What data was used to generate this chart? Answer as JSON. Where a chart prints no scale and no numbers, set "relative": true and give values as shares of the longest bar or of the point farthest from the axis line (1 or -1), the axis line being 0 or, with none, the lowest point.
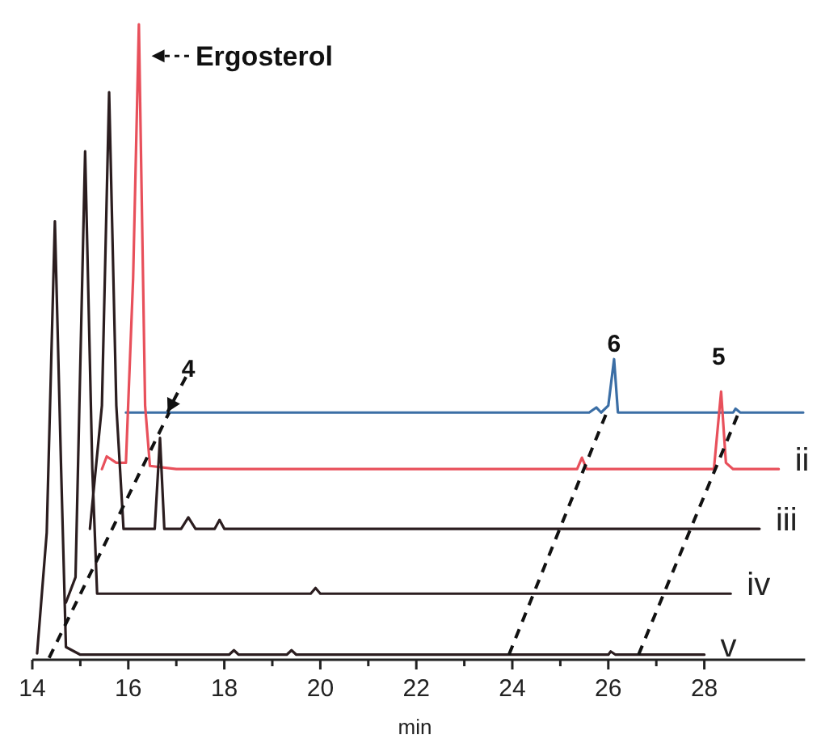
{
  "chart_data": {
    "type": "line",
    "relative": true,
    "xlabel": "min",
    "xlim": [
      14,
      30.1
    ],
    "xticks": [
      14,
      {
        "value": 15,
        "label": null
      },
      16,
      {
        "value": 17,
        "label": null
      },
      18,
      {
        "value": 19,
        "label": null
      },
      20,
      {
        "value": 21,
        "label": null
      },
      22,
      {
        "value": 23,
        "label": null
      },
      24,
      {
        "value": 25,
        "label": null
      },
      26,
      {
        "value": 27,
        "label": null
      },
      28
    ],
    "annotations": [
      "Ergosterol",
      "4",
      "6",
      "5"
    ],
    "series": [
      {
        "color": "#3b6ea5",
        "x": [
          15.95,
          25.6,
          25.75,
          25.85,
          26.0,
          26.12,
          26.2,
          28.6,
          28.65,
          28.75,
          30.06
        ],
        "values": [
          0.389,
          0.389,
          0.397,
          0.389,
          0.4,
          0.473,
          0.389,
          0.389,
          0.395,
          0.389,
          0.389
        ]
      },
      {
        "name": "ii",
        "color": "#e8505b",
        "x": [
          15.45,
          15.55,
          15.75,
          15.95,
          16.1,
          16.22,
          16.35,
          16.45,
          17,
          25.35,
          25.45,
          25.55,
          28.2,
          28.35,
          28.45,
          28.6,
          29.55
        ],
        "values": [
          0.3,
          0.32,
          0.31,
          0.31,
          0.6,
          1.0,
          0.4,
          0.305,
          0.3,
          0.3,
          0.318,
          0.3,
          0.3,
          0.422,
          0.31,
          0.3,
          0.3
        ]
      },
      {
        "name": "iii",
        "color": "#2b1d1f",
        "x": [
          15.2,
          15.45,
          15.6,
          15.75,
          15.9,
          16.55,
          16.66,
          16.75,
          17.1,
          17.25,
          17.4,
          17.8,
          17.9,
          18.0,
          29.15
        ],
        "values": [
          0.206,
          0.4,
          0.893,
          0.4,
          0.206,
          0.206,
          0.349,
          0.206,
          0.206,
          0.224,
          0.206,
          0.206,
          0.22,
          0.206,
          0.206
        ]
      },
      {
        "name": "iv",
        "color": "#2b1d1f",
        "x": [
          14.7,
          14.9,
          15.1,
          15.25,
          15.35,
          19.8,
          19.9,
          20.0,
          28.55
        ],
        "values": [
          0.09,
          0.13,
          0.8,
          0.3,
          0.104,
          0.104,
          0.113,
          0.104,
          0.104
        ]
      },
      {
        "name": "v",
        "color": "#2b1d1f",
        "x": [
          14.1,
          14.3,
          14.47,
          14.6,
          14.7,
          15,
          18.1,
          18.2,
          18.3,
          19.3,
          19.4,
          19.5,
          26,
          26.05,
          26.15,
          28
        ],
        "values": [
          0.01,
          0.2,
          0.69,
          0.3,
          0.02,
          0.008,
          0.008,
          0.015,
          0.008,
          0.008,
          0.015,
          0.008,
          0.008,
          0.013,
          0.008,
          0.008
        ]
      }
    ]
  }
}
